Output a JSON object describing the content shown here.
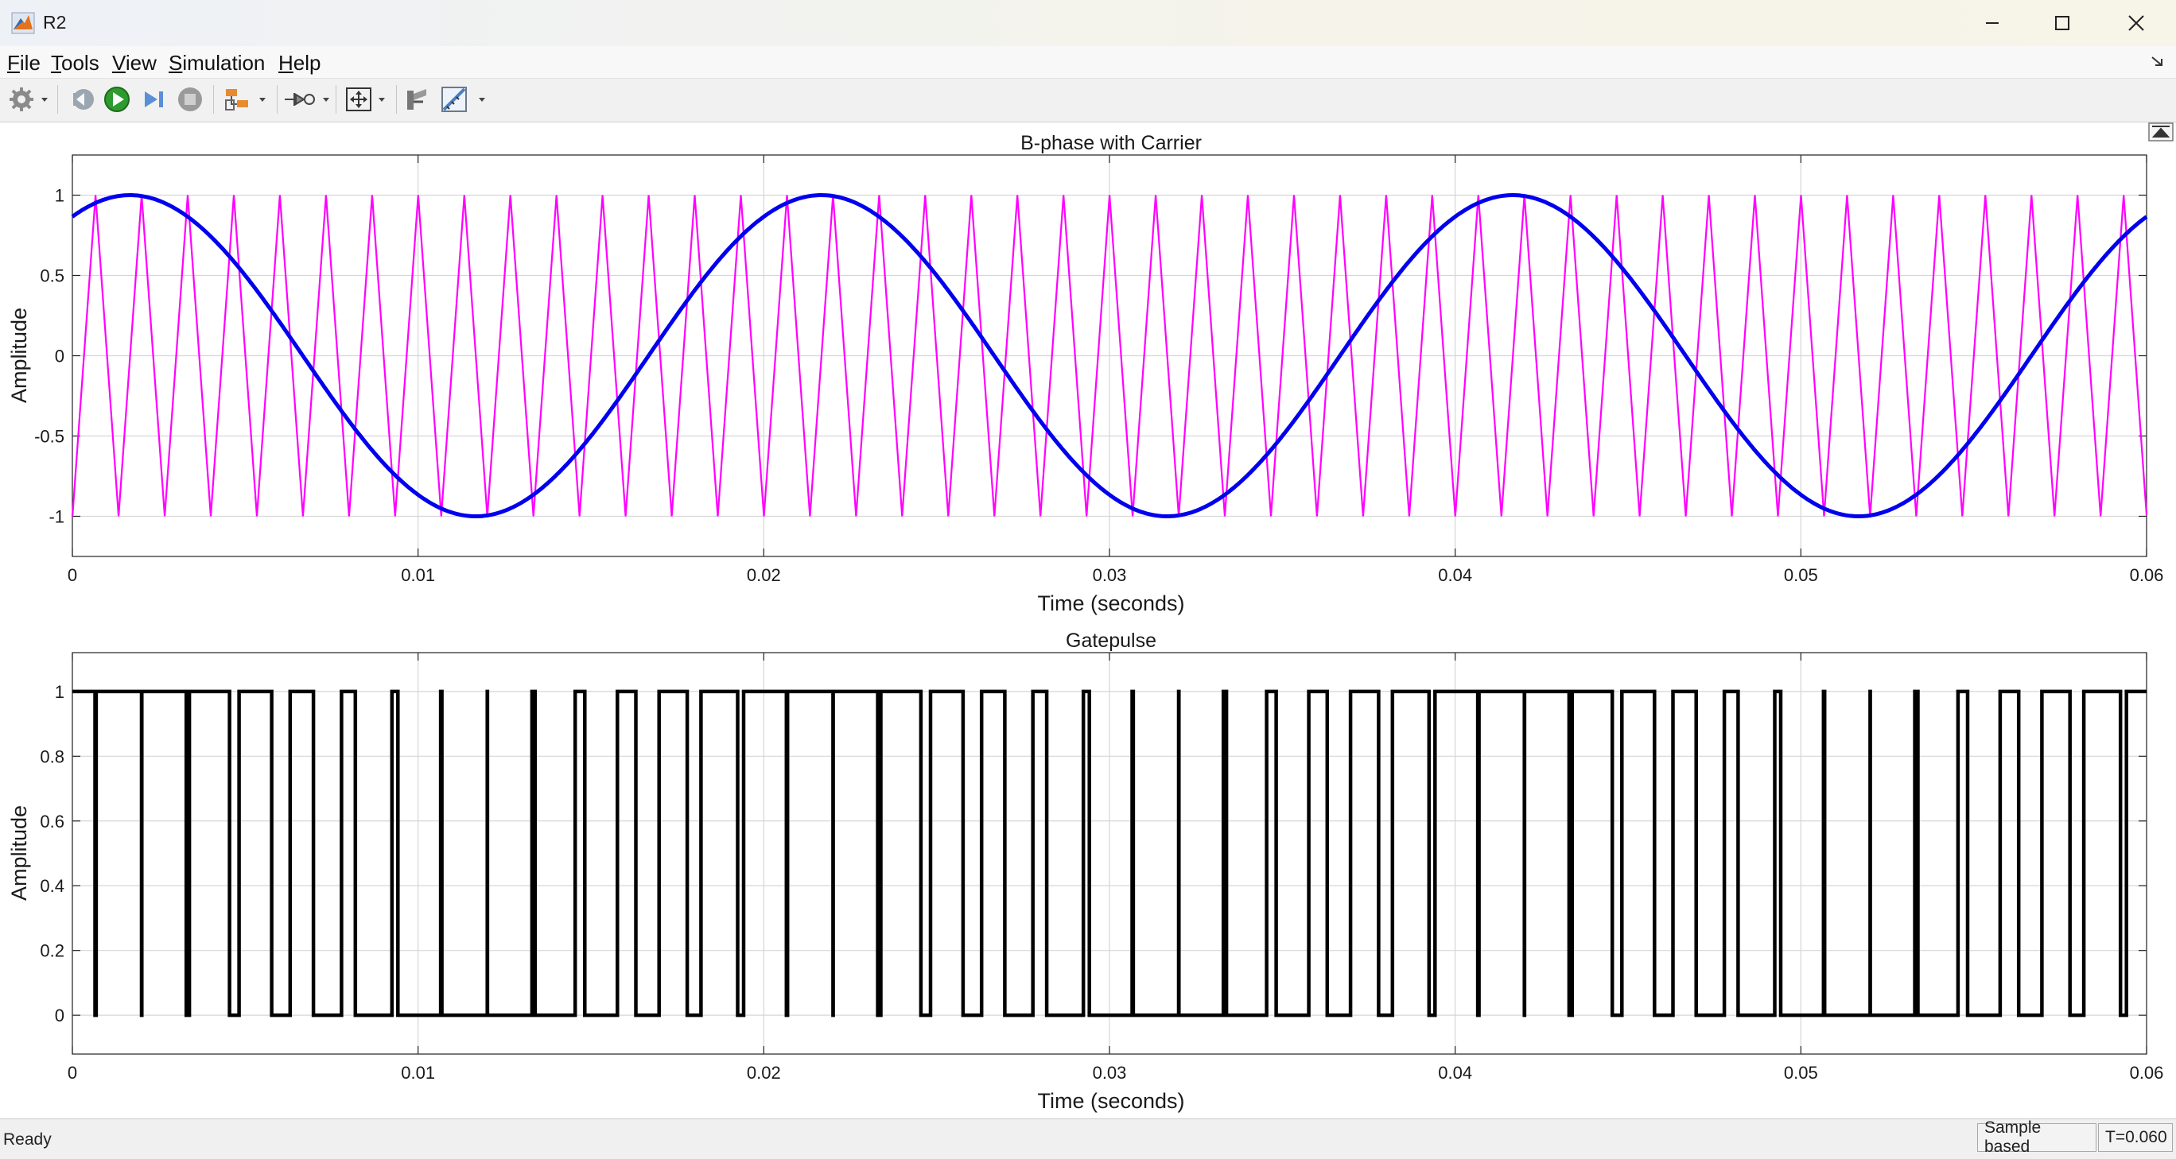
{
  "window": {
    "title": "R2",
    "icon": "matlab-icon",
    "controls": [
      "minimize-icon",
      "maximize-icon",
      "close-icon"
    ]
  },
  "menu": {
    "items": [
      {
        "label": "File",
        "mnemonic": "F",
        "rest": "ile"
      },
      {
        "label": "Tools",
        "mnemonic": "T",
        "rest": "ools"
      },
      {
        "label": "View",
        "mnemonic": "V",
        "rest": "iew"
      },
      {
        "label": "Simulation",
        "mnemonic": "S",
        "rest": "imulation"
      },
      {
        "label": "Help",
        "mnemonic": "H",
        "rest": "elp"
      }
    ]
  },
  "toolbar": {
    "buttons": [
      "settings-icon",
      "step-back-icon",
      "run-icon",
      "step-forward-icon",
      "stop-icon",
      "highlight-icon",
      "triggers-icon",
      "zoom-icon",
      "restore-view-icon",
      "measure-icon"
    ]
  },
  "colors": {
    "sine": "#0000ee",
    "carrier": "#ff00ff",
    "pulse": "#000000",
    "grid": "#d6d6d6"
  },
  "status": {
    "text": "Ready",
    "mode": "Sample based",
    "time": "T=0.060"
  },
  "chart_data": [
    {
      "type": "line",
      "title": "B-phase with Carrier",
      "xlabel": "Time (seconds)",
      "ylabel": "Amplitude",
      "xlim": [
        0,
        0.06
      ],
      "ylim": [
        -1.25,
        1.25
      ],
      "xticks": [
        "0",
        "0.01",
        "0.02",
        "0.03",
        "0.04",
        "0.05",
        "0.06"
      ],
      "yticks": [
        "-1",
        "-0.5",
        "0",
        "0.5",
        "1"
      ],
      "ytick_values": [
        -1,
        -0.5,
        0,
        0.5,
        1
      ],
      "grid": true,
      "series": [
        {
          "kind": "sine",
          "amplitude": 1,
          "frequency_hz": 50,
          "phase_deg": 60,
          "color": "#0000ee"
        },
        {
          "kind": "triangle",
          "amplitude": 1,
          "frequency_hz": 750,
          "first_peak_s": 0.00067,
          "color": "#ff00ff"
        }
      ]
    },
    {
      "type": "line",
      "title": "Gatepulse",
      "xlabel": "Time (seconds)",
      "ylabel": "Amplitude",
      "xlim": [
        0,
        0.06
      ],
      "ylim": [
        -0.12,
        1.12
      ],
      "xticks": [
        "0",
        "0.01",
        "0.02",
        "0.03",
        "0.04",
        "0.05",
        "0.06"
      ],
      "yticks": [
        "0",
        "0.2",
        "0.4",
        "0.6",
        "0.8",
        "1"
      ],
      "ytick_values": [
        0,
        0.2,
        0.4,
        0.6,
        0.8,
        1
      ],
      "grid": true,
      "series": [
        {
          "kind": "pwm",
          "description_source": "sine vs carrier comparison",
          "levels": [
            0,
            1
          ],
          "color": "#000000"
        }
      ]
    }
  ]
}
